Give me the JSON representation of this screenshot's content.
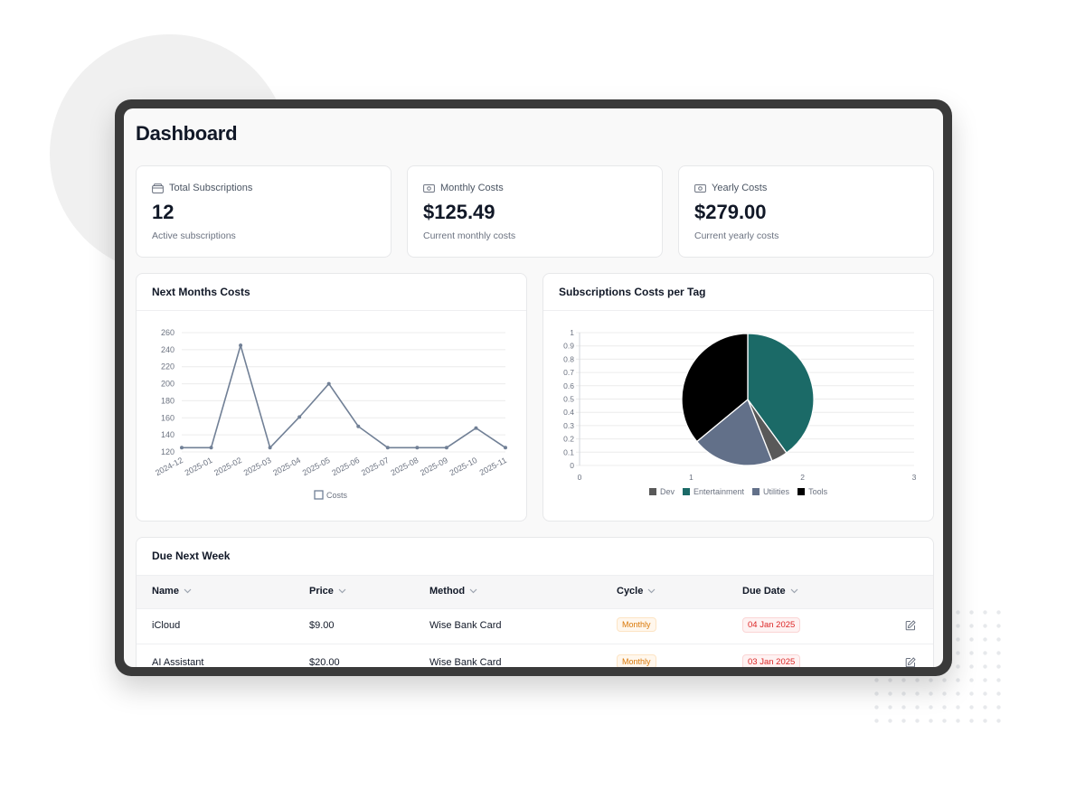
{
  "page_title": "Dashboard",
  "stats": [
    {
      "label": "Total Subscriptions",
      "value": "12",
      "desc": "Active subscriptions",
      "icon": "wallet-icon"
    },
    {
      "label": "Monthly Costs",
      "value": "$125.49",
      "desc": "Current monthly costs",
      "icon": "banknote-icon"
    },
    {
      "label": "Yearly Costs",
      "value": "$279.00",
      "desc": "Current yearly costs",
      "icon": "banknote-icon"
    }
  ],
  "line_card": {
    "title": "Next Months Costs"
  },
  "pie_card": {
    "title": "Subscriptions Costs per Tag"
  },
  "chart_data": [
    {
      "type": "line",
      "title": "Next Months Costs",
      "categories": [
        "2024-12",
        "2025-01",
        "2025-02",
        "2025-03",
        "2025-04",
        "2025-05",
        "2025-06",
        "2025-07",
        "2025-08",
        "2025-09",
        "2025-10",
        "2025-11"
      ],
      "series": [
        {
          "name": "Costs",
          "values": [
            125,
            125,
            245,
            125,
            161,
            200,
            150,
            125,
            125,
            125,
            148,
            125
          ],
          "color": "#718096"
        }
      ],
      "y_ticks": [
        120,
        140,
        160,
        180,
        200,
        220,
        240,
        260
      ],
      "ylim": [
        120,
        260
      ],
      "grid": true,
      "legend": "bottom"
    },
    {
      "type": "pie",
      "title": "Subscriptions Costs per Tag",
      "slices": [
        {
          "label": "Dev",
          "value": 4,
          "color": "#595959"
        },
        {
          "label": "Entertainment",
          "value": 40,
          "color": "#1b6a67"
        },
        {
          "label": "Utilities",
          "value": 20,
          "color": "#627089"
        },
        {
          "label": "Tools",
          "value": 36,
          "color": "#000000"
        }
      ],
      "draw_order": [
        "Entertainment",
        "Dev",
        "Utilities",
        "Tools"
      ],
      "y_ticks": [
        "1",
        "0.9",
        "0.8",
        "0.7",
        "0.6",
        "0.5",
        "0.4",
        "0.3",
        "0.2",
        "0.1",
        "0"
      ],
      "x_ticks": [
        "0",
        "1",
        "2",
        "3"
      ],
      "grid": true,
      "legend": "bottom"
    }
  ],
  "due": {
    "title": "Due Next Week",
    "columns": [
      "Name",
      "Price",
      "Method",
      "Cycle",
      "Due Date"
    ],
    "rows": [
      {
        "name": "iCloud",
        "price": "$9.00",
        "method": "Wise Bank Card",
        "cycle": "Monthly",
        "due": "04 Jan 2025"
      },
      {
        "name": "AI Assistant",
        "price": "$20.00",
        "method": "Wise Bank Card",
        "cycle": "Monthly",
        "due": "03 Jan 2025"
      }
    ]
  }
}
